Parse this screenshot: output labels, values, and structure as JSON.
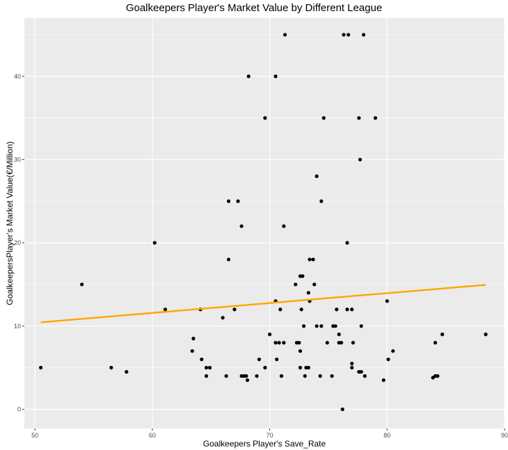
{
  "chart_data": {
    "type": "scatter",
    "title": "Goalkeepers Player's Market Value by Different League",
    "xlabel": "Goalkeepers Player's Save_Rate",
    "ylabel": "GoalkeepersPlayer's Market Value(€/Million)",
    "xlim": [
      49.1,
      90.0
    ],
    "ylim": [
      -2.3,
      47.0
    ],
    "x_ticks": [
      50,
      60,
      70,
      80,
      90
    ],
    "y_ticks": [
      0,
      10,
      20,
      30,
      40
    ],
    "x_tick_labels": [
      "50",
      "60",
      "70",
      "80",
      "90"
    ],
    "y_tick_labels": [
      "0",
      "10",
      "20",
      "30",
      "40"
    ],
    "grid": true,
    "panel_background": "#ebebeb",
    "grid_color": "#ffffff",
    "point_color": "#000000",
    "trendline": {
      "color": "#ffa500",
      "x": [
        50.5,
        88.4
      ],
      "y": [
        10.45,
        14.95
      ]
    },
    "points": [
      [
        71.3,
        45
      ],
      [
        76.3,
        45
      ],
      [
        76.7,
        45
      ],
      [
        78.0,
        45
      ],
      [
        68.2,
        40
      ],
      [
        70.5,
        40
      ],
      [
        69.6,
        35
      ],
      [
        74.6,
        35
      ],
      [
        77.6,
        35
      ],
      [
        79.0,
        35
      ],
      [
        77.7,
        30
      ],
      [
        74.0,
        28
      ],
      [
        66.5,
        25
      ],
      [
        67.3,
        25
      ],
      [
        74.4,
        25
      ],
      [
        67.6,
        22
      ],
      [
        71.2,
        22
      ],
      [
        60.2,
        20
      ],
      [
        76.6,
        20
      ],
      [
        66.5,
        18
      ],
      [
        73.4,
        18
      ],
      [
        73.7,
        18
      ],
      [
        72.8,
        16
      ],
      [
        72.6,
        16
      ],
      [
        54.0,
        15
      ],
      [
        72.2,
        15
      ],
      [
        73.8,
        15
      ],
      [
        73.3,
        14
      ],
      [
        70.5,
        13
      ],
      [
        73.4,
        13
      ],
      [
        80.0,
        13
      ],
      [
        61.1,
        12
      ],
      [
        64.1,
        12
      ],
      [
        67.0,
        12
      ],
      [
        70.9,
        12
      ],
      [
        72.7,
        12
      ],
      [
        75.7,
        12
      ],
      [
        76.6,
        12
      ],
      [
        77.0,
        12
      ],
      [
        66.0,
        11
      ],
      [
        72.9,
        10
      ],
      [
        74.0,
        10
      ],
      [
        74.4,
        10
      ],
      [
        75.4,
        10
      ],
      [
        75.6,
        10
      ],
      [
        77.8,
        10
      ],
      [
        70.0,
        9
      ],
      [
        75.9,
        9
      ],
      [
        84.7,
        9
      ],
      [
        88.4,
        9
      ],
      [
        63.5,
        8.5
      ],
      [
        70.5,
        8
      ],
      [
        70.8,
        8
      ],
      [
        71.2,
        8
      ],
      [
        72.3,
        8
      ],
      [
        72.5,
        8
      ],
      [
        74.9,
        8
      ],
      [
        75.9,
        8
      ],
      [
        76.1,
        8
      ],
      [
        77.1,
        8
      ],
      [
        84.1,
        8
      ],
      [
        63.4,
        7
      ],
      [
        72.6,
        7
      ],
      [
        80.5,
        7
      ],
      [
        64.2,
        6
      ],
      [
        69.1,
        6
      ],
      [
        70.6,
        6
      ],
      [
        80.1,
        6
      ],
      [
        77.0,
        5.5
      ],
      [
        50.5,
        5
      ],
      [
        56.5,
        5
      ],
      [
        64.6,
        5
      ],
      [
        64.9,
        5
      ],
      [
        69.6,
        5
      ],
      [
        72.6,
        5
      ],
      [
        73.1,
        5
      ],
      [
        73.3,
        5
      ],
      [
        77.0,
        5
      ],
      [
        57.8,
        4.5
      ],
      [
        77.6,
        4.5
      ],
      [
        77.8,
        4.5
      ],
      [
        64.6,
        4
      ],
      [
        66.3,
        4
      ],
      [
        67.6,
        4
      ],
      [
        67.8,
        4
      ],
      [
        68.0,
        4
      ],
      [
        68.9,
        4
      ],
      [
        71.0,
        4
      ],
      [
        73.0,
        4
      ],
      [
        74.3,
        4
      ],
      [
        75.3,
        4
      ],
      [
        78.1,
        4
      ],
      [
        84.1,
        4
      ],
      [
        84.3,
        4
      ],
      [
        83.9,
        3.8
      ],
      [
        68.1,
        3.5
      ],
      [
        79.7,
        3.5
      ],
      [
        76.2,
        0
      ]
    ]
  }
}
